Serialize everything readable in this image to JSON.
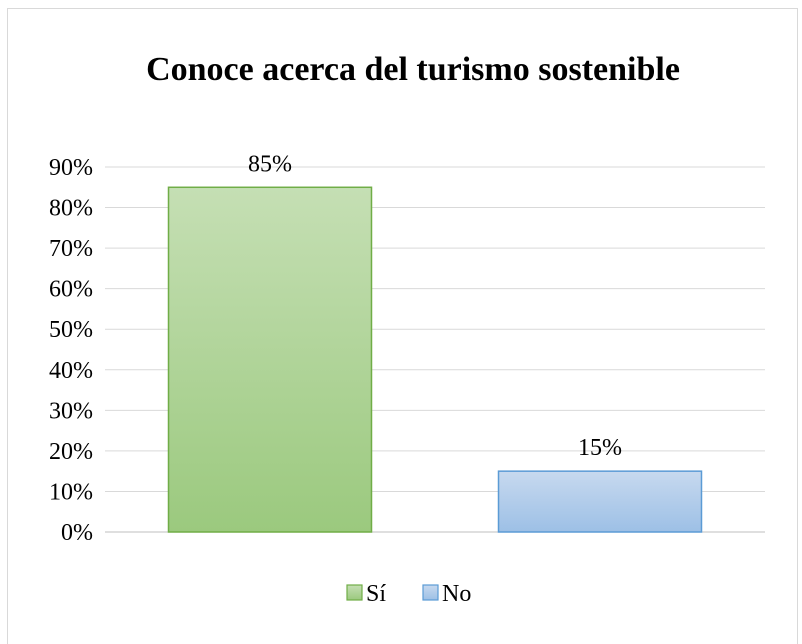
{
  "chart_data": {
    "type": "bar",
    "title": "Conoce acerca del turismo sostenible",
    "categories": [
      "Sí",
      "No"
    ],
    "values": [
      85,
      15
    ],
    "data_labels": [
      "85%",
      "15%"
    ],
    "ylim": [
      0,
      90
    ],
    "ytick_step": 10,
    "ytick_labels": [
      "0%",
      "10%",
      "20%",
      "30%",
      "40%",
      "50%",
      "60%",
      "70%",
      "80%",
      "90%"
    ],
    "grid": true,
    "legend": "bottom",
    "legend_entries": [
      "Sí",
      "No"
    ],
    "colors": {
      "Sí": {
        "top": "#c5dfb4",
        "bottom": "#9bc97e",
        "border": "#70ad47"
      },
      "No": {
        "top": "#c7d9ef",
        "bottom": "#9dc0e6",
        "border": "#5b9bd5"
      },
      "grid": "#d9d9d9",
      "axis": "#bfbfbf"
    }
  }
}
